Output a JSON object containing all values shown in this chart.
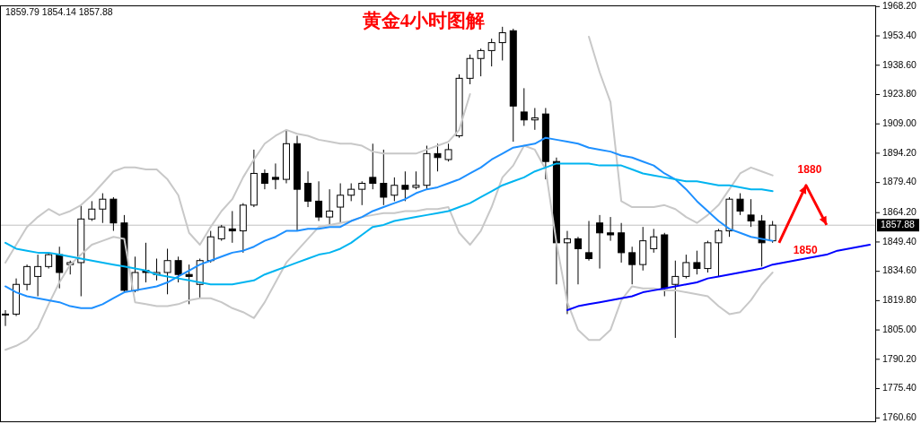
{
  "chart_data": {
    "type": "candlestick",
    "title": "黄金4小时图解",
    "categories": [
      null,
      null,
      null,
      null,
      null,
      null,
      null,
      null,
      null,
      null,
      null,
      null,
      null,
      null,
      null,
      null,
      null,
      null,
      null,
      null,
      null,
      null,
      null,
      null,
      null,
      null,
      null,
      null,
      null,
      null,
      null,
      null,
      null,
      null,
      null,
      null,
      null,
      null,
      null,
      null,
      null,
      null,
      null,
      null,
      null,
      null,
      null,
      null,
      null,
      null,
      null,
      null,
      null,
      null,
      null,
      null,
      null,
      null,
      null,
      null,
      null,
      null,
      null,
      null,
      null,
      null,
      null,
      null,
      null,
      null,
      null,
      null,
      null,
      null,
      null,
      null,
      null,
      null,
      null,
      null,
      null
    ],
    "ohlc": [
      [
        1813,
        1815,
        1807,
        1813
      ],
      [
        1813,
        1831,
        1812,
        1828
      ],
      [
        1828,
        1838,
        1825,
        1837
      ],
      [
        1832,
        1843,
        1822,
        1837
      ],
      [
        1837,
        1844,
        1836,
        1843
      ],
      [
        1843,
        1847,
        1826,
        1834
      ],
      [
        1838,
        1840,
        1833,
        1839
      ],
      [
        1839,
        1868,
        1822,
        1861
      ],
      [
        1861,
        1870,
        1860,
        1866
      ],
      [
        1866,
        1874,
        1859,
        1871
      ],
      [
        1871,
        1872,
        1855,
        1859
      ],
      [
        1859,
        1863,
        1824,
        1825
      ],
      [
        1825,
        1842,
        1824,
        1834
      ],
      [
        1835,
        1849,
        1829,
        1834
      ],
      [
        1833,
        1841,
        1830,
        1834
      ],
      [
        1834,
        1846,
        1823,
        1840
      ],
      [
        1840,
        1842,
        1829,
        1833
      ],
      [
        1833,
        1838,
        1818,
        1832
      ],
      [
        1828,
        1841,
        1821,
        1840
      ],
      [
        1840,
        1855,
        1839,
        1852
      ],
      [
        1851,
        1858,
        1850,
        1857
      ],
      [
        1856,
        1865,
        1849,
        1855
      ],
      [
        1855,
        1869,
        1844,
        1868
      ],
      [
        1868,
        1896,
        1867,
        1884
      ],
      [
        1884,
        1886,
        1876,
        1879
      ],
      [
        1882,
        1889,
        1876,
        1881
      ],
      [
        1881,
        1906,
        1879,
        1899
      ],
      [
        1899,
        1903,
        1855,
        1876
      ],
      [
        1879,
        1885,
        1867,
        1870
      ],
      [
        1870,
        1880,
        1860,
        1862
      ],
      [
        1862,
        1876,
        1858,
        1865
      ],
      [
        1867,
        1879,
        1859,
        1873
      ],
      [
        1873,
        1879,
        1870,
        1876
      ],
      [
        1876,
        1880,
        1868,
        1879
      ],
      [
        1882,
        1899,
        1876,
        1879
      ],
      [
        1879,
        1896,
        1868,
        1872
      ],
      [
        1873,
        1882,
        1870,
        1878
      ],
      [
        1878,
        1885,
        1870,
        1876
      ],
      [
        1877,
        1885,
        1876,
        1878
      ],
      [
        1878,
        1898,
        1876,
        1894
      ],
      [
        1894,
        1899,
        1885,
        1892
      ],
      [
        1891,
        1899,
        1890,
        1896
      ],
      [
        1903,
        1934,
        1902,
        1932
      ],
      [
        1932,
        1944,
        1929,
        1942
      ],
      [
        1942,
        1947,
        1933,
        1946
      ],
      [
        1946,
        1952,
        1938,
        1950
      ],
      [
        1950,
        1958,
        1941,
        1955
      ],
      [
        1956,
        1957,
        1900,
        1918
      ],
      [
        1915,
        1927,
        1908,
        1911
      ],
      [
        1911,
        1917,
        1906,
        1912
      ],
      [
        1914,
        1917,
        1881,
        1890
      ],
      [
        1890,
        1892,
        1828,
        1849
      ],
      [
        1849,
        1855,
        1813,
        1851
      ],
      [
        1851,
        1852,
        1828,
        1846
      ],
      [
        1844,
        1860,
        1840,
        1841
      ],
      [
        1859,
        1863,
        1836,
        1854
      ],
      [
        1854,
        1862,
        1850,
        1853
      ],
      [
        1854,
        1859,
        1839,
        1844
      ],
      [
        1844,
        1847,
        1828,
        1838
      ],
      [
        1838,
        1857,
        1835,
        1850
      ],
      [
        1846,
        1856,
        1844,
        1852
      ],
      [
        1853,
        1854,
        1822,
        1826
      ],
      [
        1828,
        1840,
        1801,
        1832
      ],
      [
        1832,
        1843,
        1831,
        1839
      ],
      [
        1839,
        1845,
        1833,
        1836
      ],
      [
        1836,
        1850,
        1834,
        1849
      ],
      [
        1849,
        1856,
        1832,
        1855
      ],
      [
        1855,
        1872,
        1852,
        1871
      ],
      [
        1871,
        1874,
        1863,
        1865
      ],
      [
        1863,
        1871,
        1857,
        1860
      ],
      [
        1860,
        1863,
        1837,
        1849
      ],
      [
        1850,
        1860,
        1849,
        1857.88
      ],
      null,
      null,
      null,
      null,
      null,
      null,
      null,
      null,
      null
    ],
    "series": [
      {
        "type": "line",
        "color": "#c8c8c8",
        "values": [
          1839,
          1848,
          1857,
          1862,
          1866,
          1863,
          1865,
          1868,
          1873,
          1879,
          1885,
          1887,
          1887,
          1886,
          1886,
          1881,
          1873,
          1854,
          1848,
          1857,
          1865,
          1871,
          1882,
          1891,
          1899,
          1903,
          1906,
          1904,
          1903,
          1901,
          1900,
          1899,
          1899,
          1898,
          1895,
          1894,
          1894,
          1894,
          1894,
          1896,
          1898,
          1900,
          1906,
          1924,
          null,
          null,
          null,
          null,
          null,
          null,
          null,
          null,
          null,
          null,
          1953,
          1935,
          1920,
          1870,
          1867,
          1867,
          1867,
          1868,
          1866,
          1862,
          1859,
          1863,
          1868,
          1876,
          1884,
          1887,
          1885,
          1883,
          null,
          null,
          null,
          null,
          null,
          null,
          null,
          null,
          null
        ]
      },
      {
        "type": "line",
        "color": "#c8c8c8",
        "values": [
          1795,
          1797,
          1800,
          1806,
          1818,
          1829,
          1838,
          1843,
          1848,
          1850,
          1852,
          1851,
          1819,
          1818,
          1817,
          1817,
          1818,
          1820,
          1821,
          1821,
          1819,
          1816,
          1814,
          1811,
          1819,
          1829,
          1839,
          1845,
          1851,
          1857,
          1858,
          1859,
          1860,
          1862,
          1863,
          1864,
          1864,
          1865,
          1865,
          1866,
          1866,
          1867,
          1854,
          1848,
          1855,
          1867,
          1882,
          1888,
          1898,
          1896,
          1886,
          1849,
          1819,
          1805,
          1800,
          1800,
          1805,
          1820,
          1827,
          1826,
          1826,
          1825,
          1825,
          1824,
          1823,
          1822,
          1817,
          1813,
          1814,
          1820,
          1828,
          1834,
          null,
          null,
          null,
          null,
          null,
          null,
          null,
          null,
          null
        ]
      },
      {
        "type": "line",
        "color": "#1e90ff",
        "values": [
          1827,
          1824,
          1822,
          1821,
          1820,
          1819,
          1817,
          1816,
          1816,
          1818,
          1821,
          1824,
          1825,
          1826,
          1827,
          1829,
          1832,
          1835,
          1838,
          1840,
          1842,
          1844,
          1845,
          1847,
          1850,
          1852,
          1855,
          1855,
          1856,
          1856,
          1857,
          1857,
          1860,
          1862,
          1865,
          1867,
          1869,
          1871,
          1874,
          1876,
          1877,
          1879,
          1881,
          1884,
          1887,
          1891,
          1894,
          1897,
          1898,
          1899,
          1902,
          1901,
          1900,
          1899,
          1897,
          1896,
          1895,
          1893,
          1892,
          1890,
          1888,
          1884,
          1881,
          1876,
          1870,
          1865,
          1860,
          1856,
          1854,
          1852,
          1851,
          1850,
          null,
          null,
          null,
          null,
          null,
          null,
          null,
          null,
          null
        ]
      },
      {
        "type": "line",
        "color": "#00b4f0",
        "values": [
          1849,
          1846,
          1845,
          1844,
          1844,
          1843,
          1842,
          1841,
          1840,
          1839,
          1838,
          1837,
          1836,
          1835,
          1833,
          1832,
          1831,
          1830,
          1829,
          1828,
          1828,
          1828,
          1829,
          1830,
          1833,
          1835,
          1837,
          1839,
          1841,
          1843,
          1844,
          1846,
          1849,
          1853,
          1857,
          1858,
          1860,
          1861,
          1862,
          1863,
          1864,
          1865,
          1867,
          1869,
          1872,
          1875,
          1878,
          1880,
          1882,
          1885,
          1887,
          1889,
          1889,
          1889,
          1889,
          1888,
          1888,
          1888,
          1886,
          1884,
          1883,
          1882,
          1881,
          1880,
          1880,
          1879,
          1878,
          1878,
          1877,
          1876,
          1876,
          1875,
          null,
          null,
          null,
          null,
          null,
          null,
          null,
          null,
          null
        ]
      },
      {
        "type": "line",
        "color": "#0000ff",
        "values": [
          null,
          null,
          null,
          null,
          null,
          null,
          null,
          null,
          null,
          null,
          null,
          null,
          null,
          null,
          null,
          null,
          null,
          null,
          null,
          null,
          null,
          null,
          null,
          null,
          null,
          null,
          null,
          null,
          null,
          null,
          null,
          null,
          null,
          null,
          null,
          null,
          null,
          null,
          null,
          null,
          null,
          null,
          null,
          null,
          null,
          null,
          null,
          null,
          null,
          null,
          null,
          null,
          1815,
          1817,
          1818,
          1819,
          1820,
          1821,
          1822,
          1824,
          1825,
          1826,
          1827,
          1828,
          1829,
          1831,
          1832,
          1833,
          1834,
          1835,
          1836,
          1838,
          1839,
          1840,
          1841,
          1842,
          1843,
          1845,
          1846,
          1847,
          1848
        ]
      }
    ],
    "ylim": [
      1758.9,
      1968.8
    ],
    "yticks": [
      {
        "value": 1760.6,
        "label": "1760.60"
      },
      {
        "value": 1775.4,
        "label": "1775.40"
      },
      {
        "value": 1790.2,
        "label": "1790.20"
      },
      {
        "value": 1805,
        "label": "1805.00"
      },
      {
        "value": 1819.8,
        "label": "1819.80"
      },
      {
        "value": 1834.6,
        "label": "1834.60"
      },
      {
        "value": 1849.4,
        "label": "1849.40"
      },
      {
        "value": 1864.2,
        "label": "1864.20"
      },
      {
        "value": 1879.4,
        "label": "1879.40"
      },
      {
        "value": 1894.2,
        "label": "1894.20"
      },
      {
        "value": 1909,
        "label": "1909.00"
      },
      {
        "value": 1923.8,
        "label": "1923.80"
      },
      {
        "value": 1938.6,
        "label": "1938.60"
      },
      {
        "value": 1953.4,
        "label": "1953.40"
      },
      {
        "value": 1968.2,
        "label": "1968.20"
      }
    ],
    "ref_lines": [
      {
        "axis": "y",
        "value": 1857.88,
        "label": "1857.88",
        "color": "#c0c0c0"
      }
    ],
    "annotations": [
      "1859.79 1854.14 1857.88",
      "1880",
      "1850"
    ],
    "tick_labels": "y"
  }
}
